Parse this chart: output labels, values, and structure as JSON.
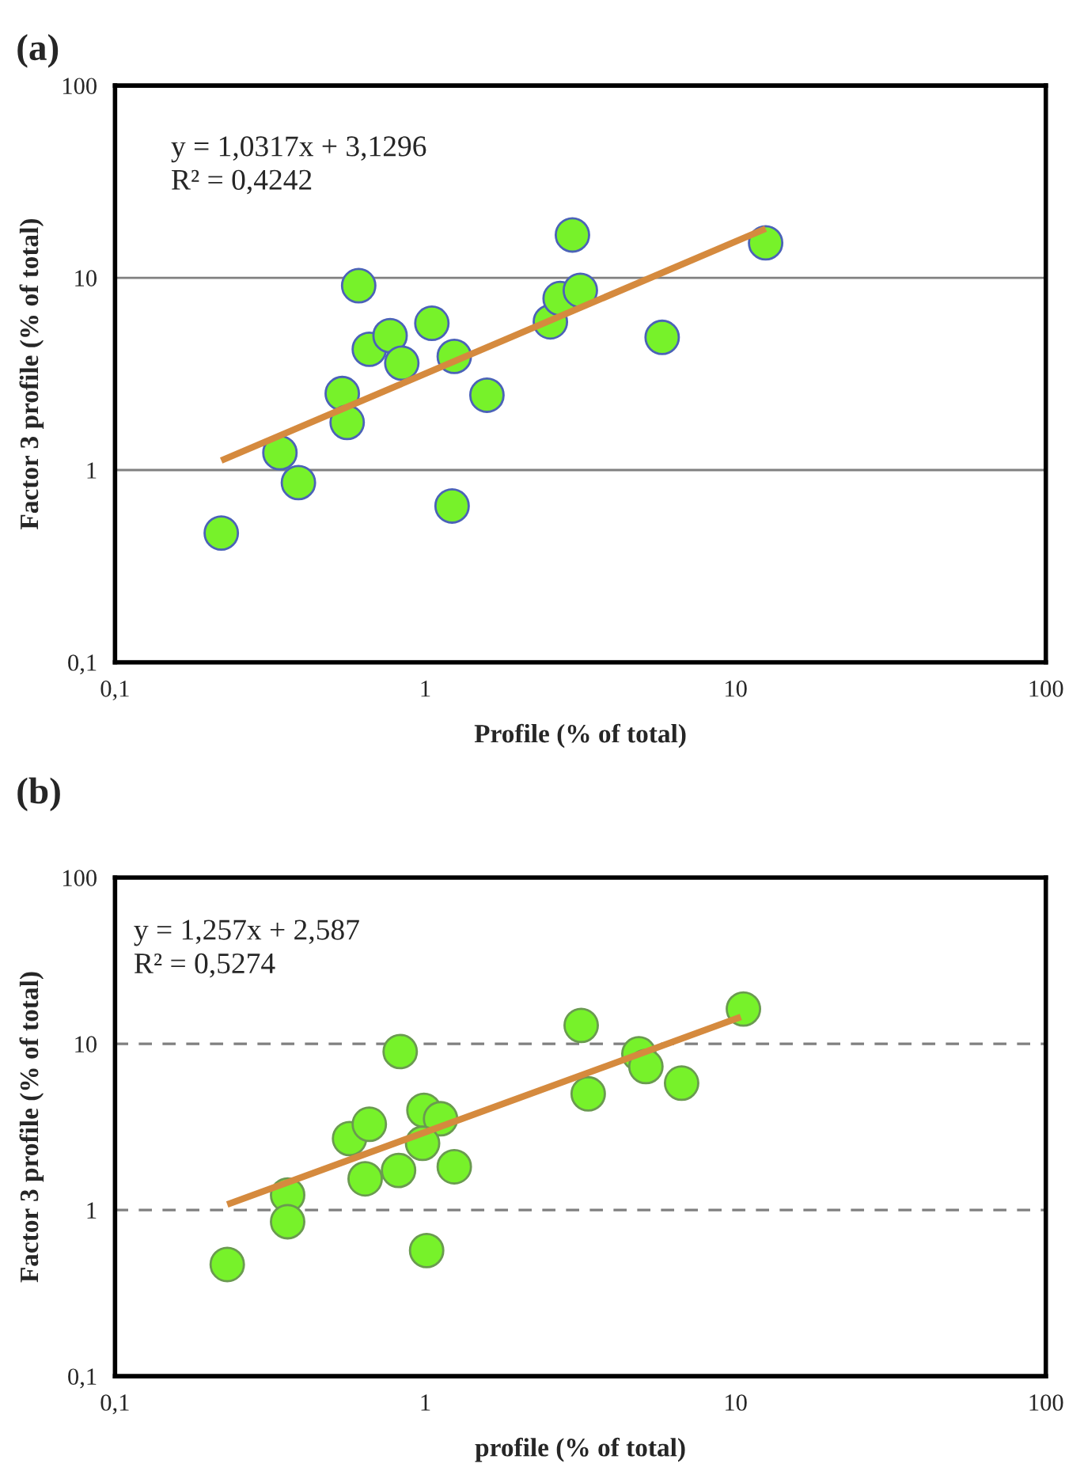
{
  "chart_data": [
    {
      "type": "scatter",
      "title": "(a)",
      "xlabel": "Profile (% of total)",
      "ylabel": "Factor 3 profile (% of total)",
      "log": "xy",
      "grid": "y",
      "legend": false,
      "xlim": [
        0.1,
        100
      ],
      "ylim": [
        0.1,
        100
      ],
      "xticks": [
        {
          "value": 0.1,
          "label": "0,1"
        },
        1,
        10,
        100
      ],
      "yticks": [
        {
          "value": 0.1,
          "label": "0,1"
        },
        1,
        10,
        100
      ],
      "annotations": [
        "y = 1,0317x + 3,1296",
        "R² = 0,4242"
      ],
      "series": [
        {
          "color": "#77f22a",
          "x": [
            0.22,
            0.34,
            0.39,
            0.54,
            0.56,
            0.61,
            0.66,
            0.77,
            0.84,
            1.05,
            1.24,
            1.22,
            1.58,
            2.53,
            2.72,
            2.98,
            3.16,
            5.8,
            12.5
          ],
          "values": [
            0.47,
            1.23,
            0.86,
            2.5,
            1.77,
            9.1,
            4.25,
            5.0,
            3.6,
            5.8,
            3.9,
            0.65,
            2.45,
            5.9,
            7.8,
            16.7,
            8.6,
            4.9,
            15.2
          ]
        },
        {
          "type": "line",
          "color": "#d58a3e",
          "x": [
            0.22,
            12.5
          ],
          "values": [
            1.12,
            18.0
          ]
        }
      ]
    },
    {
      "type": "scatter",
      "title": "(b)",
      "xlabel": "profile (% of total)",
      "ylabel": "Factor 3 profile (% of total)",
      "log": "xy",
      "legend": false,
      "xlim": [
        0.1,
        100
      ],
      "ylim": [
        0.1,
        100
      ],
      "xticks": [
        {
          "value": 0.1,
          "label": "0,1"
        },
        1,
        10,
        100
      ],
      "yticks": [
        {
          "value": 0.1,
          "label": "0,1"
        },
        1,
        10,
        100
      ],
      "ref_lines": [
        {
          "axis": "y",
          "value": 1,
          "label": null,
          "color": "#808080",
          "line_style": "dashed"
        },
        {
          "axis": "y",
          "value": 10,
          "label": null,
          "color": "#808080",
          "line_style": "dashed"
        }
      ],
      "annotations": [
        "y = 1,257x + 2,587",
        "R² = 0,5274"
      ],
      "series": [
        {
          "color": "#77f22a",
          "x": [
            0.23,
            0.36,
            0.36,
            0.57,
            0.66,
            0.64,
            0.83,
            0.82,
            0.99,
            1.12,
            0.98,
            1.24,
            1.01,
            3.18,
            3.35,
            4.88,
            5.14,
            6.7,
            10.6
          ],
          "values": [
            0.47,
            1.23,
            0.85,
            2.69,
            3.28,
            1.54,
            8.98,
            1.73,
            3.98,
            3.54,
            2.52,
            1.82,
            0.57,
            12.9,
            5.0,
            8.7,
            7.3,
            5.8,
            16.2
          ]
        },
        {
          "type": "line",
          "color": "#d58a3e",
          "x": [
            0.23,
            10.4
          ],
          "values": [
            1.08,
            14.5
          ]
        }
      ]
    }
  ]
}
